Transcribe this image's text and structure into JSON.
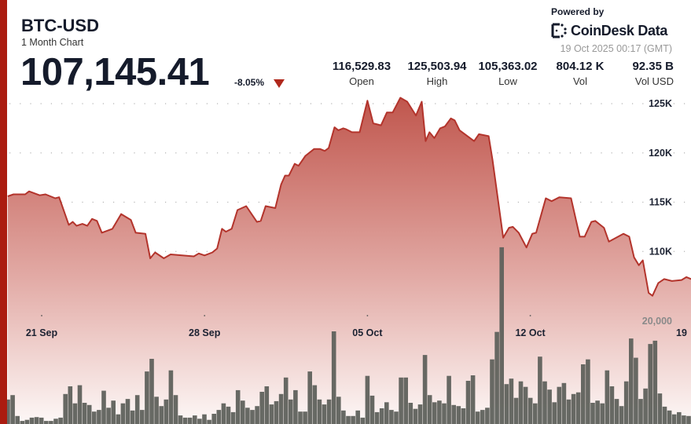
{
  "header": {
    "title": "BTC-USD",
    "subtitle": "1 Month Chart",
    "price": "107,145.41",
    "change": "-8.05%",
    "change_direction": "down",
    "stats": [
      {
        "value": "116,529.83",
        "label": "Open"
      },
      {
        "value": "125,503.94",
        "label": "High"
      },
      {
        "value": "105,363.02",
        "label": "Low"
      },
      {
        "value": "804.12 K",
        "label": "Vol"
      },
      {
        "value": "92.35 B",
        "label": "Vol USD"
      }
    ],
    "powered_by": "Powered by",
    "brand": "CoinDesk Data",
    "timestamp": "19 Oct 2025 00:17 (GMT)"
  },
  "colors": {
    "accent": "#ab1c10",
    "line": "#b3342c",
    "fill_top": "#c0564d",
    "volume": "#5f615c",
    "down": "#b0281c"
  },
  "chart_data": {
    "type": "area",
    "y_unit": "K",
    "ylim": [
      105,
      125.5
    ],
    "y_ticks": [
      {
        "value": 125,
        "label": "125K"
      },
      {
        "value": 120,
        "label": "120K"
      },
      {
        "value": 115,
        "label": "115K"
      },
      {
        "value": 110,
        "label": "110K"
      }
    ],
    "x_ticks": [
      {
        "date": "2025-09-21",
        "label": "21 Sep"
      },
      {
        "date": "2025-09-28",
        "label": "28 Sep"
      },
      {
        "date": "2025-10-05",
        "label": "05 Oct"
      },
      {
        "date": "2025-10-12",
        "label": "12 Oct"
      },
      {
        "date": "2025-10-19",
        "label": "19"
      }
    ],
    "grid": "dotted horizontal",
    "price_series": [
      [
        "2025-09-19T13:00",
        115.6
      ],
      [
        "2025-09-19T19:00",
        115.8
      ],
      [
        "2025-09-20T07:00",
        115.8
      ],
      [
        "2025-09-20T11:00",
        116.1
      ],
      [
        "2025-09-20T22:00",
        115.7
      ],
      [
        "2025-09-21T04:00",
        115.8
      ],
      [
        "2025-09-21T14:00",
        115.4
      ],
      [
        "2025-09-21T18:00",
        115.5
      ],
      [
        "2025-09-22T04:00",
        112.7
      ],
      [
        "2025-09-22T08:00",
        113.0
      ],
      [
        "2025-09-22T12:00",
        112.6
      ],
      [
        "2025-09-22T18:00",
        112.8
      ],
      [
        "2025-09-22T23:00",
        112.6
      ],
      [
        "2025-09-23T04:00",
        113.3
      ],
      [
        "2025-09-23T09:00",
        113.1
      ],
      [
        "2025-09-23T14:00",
        111.9
      ],
      [
        "2025-09-24T01:00",
        112.3
      ],
      [
        "2025-09-24T10:00",
        113.8
      ],
      [
        "2025-09-24T20:00",
        113.2
      ],
      [
        "2025-09-25T01:00",
        111.9
      ],
      [
        "2025-09-25T11:00",
        111.8
      ],
      [
        "2025-09-25T16:00",
        109.3
      ],
      [
        "2025-09-25T21:00",
        109.9
      ],
      [
        "2025-09-26T06:00",
        109.3
      ],
      [
        "2025-09-26T13:00",
        109.7
      ],
      [
        "2025-09-27T13:00",
        109.5
      ],
      [
        "2025-09-27T18:00",
        109.8
      ],
      [
        "2025-09-28T00:00",
        109.6
      ],
      [
        "2025-09-28T08:00",
        109.9
      ],
      [
        "2025-09-28T13:00",
        110.3
      ],
      [
        "2025-09-28T18:00",
        112.3
      ],
      [
        "2025-09-28T22:00",
        112.0
      ],
      [
        "2025-09-29T04:00",
        112.3
      ],
      [
        "2025-09-29T10:00",
        114.2
      ],
      [
        "2025-09-29T19:00",
        114.6
      ],
      [
        "2025-09-30T06:00",
        113.0
      ],
      [
        "2025-09-30T10:00",
        113.1
      ],
      [
        "2025-09-30T15:00",
        114.6
      ],
      [
        "2025-10-01T01:00",
        114.4
      ],
      [
        "2025-10-01T07:00",
        116.8
      ],
      [
        "2025-10-01T11:00",
        117.7
      ],
      [
        "2025-10-01T15:00",
        117.7
      ],
      [
        "2025-10-01T21:00",
        118.9
      ],
      [
        "2025-10-02T01:00",
        118.7
      ],
      [
        "2025-10-02T08:00",
        119.7
      ],
      [
        "2025-10-02T17:00",
        120.4
      ],
      [
        "2025-10-02T23:00",
        120.4
      ],
      [
        "2025-10-03T04:00",
        120.2
      ],
      [
        "2025-10-03T08:00",
        120.5
      ],
      [
        "2025-10-03T14:00",
        122.6
      ],
      [
        "2025-10-03T18:00",
        122.3
      ],
      [
        "2025-10-03T23:00",
        122.5
      ],
      [
        "2025-10-04T02:00",
        122.4
      ],
      [
        "2025-10-04T08:00",
        122.1
      ],
      [
        "2025-10-04T16:00",
        122.1
      ],
      [
        "2025-10-05T00:00",
        125.3
      ],
      [
        "2025-10-05T06:00",
        123.0
      ],
      [
        "2025-10-05T14:00",
        122.8
      ],
      [
        "2025-10-05T20:00",
        124.1
      ],
      [
        "2025-10-06T02:00",
        124.1
      ],
      [
        "2025-10-06T10:00",
        125.6
      ],
      [
        "2025-10-06T17:00",
        125.2
      ],
      [
        "2025-10-07T02:00",
        123.8
      ],
      [
        "2025-10-07T08:00",
        125.2
      ],
      [
        "2025-10-07T12:00",
        121.2
      ],
      [
        "2025-10-07T16:00",
        122.1
      ],
      [
        "2025-10-07T21:00",
        121.5
      ],
      [
        "2025-10-08T03:00",
        122.5
      ],
      [
        "2025-10-08T08:00",
        122.7
      ],
      [
        "2025-10-08T14:00",
        123.5
      ],
      [
        "2025-10-08T18:00",
        123.3
      ],
      [
        "2025-10-08T23:00",
        122.3
      ],
      [
        "2025-10-09T14:00",
        121.2
      ],
      [
        "2025-10-09T19:00",
        121.9
      ],
      [
        "2025-10-10T05:00",
        121.7
      ],
      [
        "2025-10-10T09:00",
        119.3
      ],
      [
        "2025-10-10T20:00",
        111.4
      ],
      [
        "2025-10-11T02:00",
        112.4
      ],
      [
        "2025-10-11T06:00",
        112.5
      ],
      [
        "2025-10-11T12:00",
        111.9
      ],
      [
        "2025-10-11T20:00",
        110.4
      ],
      [
        "2025-10-12T02:00",
        111.8
      ],
      [
        "2025-10-12T06:00",
        111.9
      ],
      [
        "2025-10-12T16:00",
        115.4
      ],
      [
        "2025-10-12T22:00",
        115.1
      ],
      [
        "2025-10-13T06:00",
        115.5
      ],
      [
        "2025-10-13T18:00",
        115.4
      ],
      [
        "2025-10-14T03:00",
        111.5
      ],
      [
        "2025-10-14T08:00",
        111.5
      ],
      [
        "2025-10-14T15:00",
        113.0
      ],
      [
        "2025-10-14T19:00",
        113.1
      ],
      [
        "2025-10-15T04:00",
        112.4
      ],
      [
        "2025-10-15T09:00",
        111.0
      ],
      [
        "2025-10-16T00:00",
        111.8
      ],
      [
        "2025-10-16T06:00",
        111.5
      ],
      [
        "2025-10-16T11:00",
        109.4
      ],
      [
        "2025-10-16T16:00",
        108.6
      ],
      [
        "2025-10-16T20:00",
        109.1
      ],
      [
        "2025-10-17T02:00",
        105.8
      ],
      [
        "2025-10-17T06:00",
        105.5
      ],
      [
        "2025-10-17T12:00",
        106.8
      ],
      [
        "2025-10-17T18:00",
        107.2
      ],
      [
        "2025-10-18T02:00",
        107.0
      ],
      [
        "2025-10-18T12:00",
        107.1
      ],
      [
        "2025-10-18T17:00",
        107.4
      ],
      [
        "2025-10-18T22:00",
        107.2
      ]
    ],
    "volume": {
      "tick": {
        "value": 20000,
        "label": "20,000"
      },
      "values": [
        5600,
        6400,
        2600,
        1700,
        1900,
        2300,
        2400,
        2300,
        1700,
        1700,
        2100,
        2300,
        6600,
        8000,
        4900,
        8200,
        5000,
        4600,
        3400,
        3700,
        7200,
        4100,
        5400,
        2900,
        4900,
        5700,
        3600,
        6400,
        3700,
        10700,
        13000,
        6100,
        4400,
        5600,
        10900,
        6400,
        2700,
        2300,
        2300,
        2700,
        2100,
        2900,
        1900,
        3000,
        3700,
        4900,
        4300,
        3300,
        7300,
        5400,
        4100,
        3700,
        4400,
        7000,
        8000,
        4700,
        5300,
        6600,
        9600,
        5600,
        7300,
        3400,
        3400,
        10700,
        8200,
        5600,
        4700,
        5600,
        18000,
        6100,
        3600,
        2600,
        2600,
        3600,
        2300,
        9900,
        6300,
        3300,
        4000,
        5100,
        3700,
        3400,
        9600,
        9600,
        5000,
        3900,
        4700,
        13700,
        6400,
        5100,
        5400,
        4900,
        9900,
        4600,
        4400,
        4000,
        9000,
        10000,
        3400,
        3700,
        4100,
        12900,
        17900,
        33300,
        8400,
        9400,
        5900,
        8900,
        7900,
        5900,
        4900,
        13400,
        8900,
        7400,
        5100,
        7900,
        8600,
        5600,
        6600,
        6900,
        12000,
        12900,
        5000,
        5400,
        4900,
        10900,
        8000,
        5700,
        4400,
        8900,
        16700,
        13200,
        5700,
        7600,
        15700,
        16300,
        6700,
        4300,
        3600,
        2900,
        3300,
        2700,
        2600
      ]
    }
  }
}
